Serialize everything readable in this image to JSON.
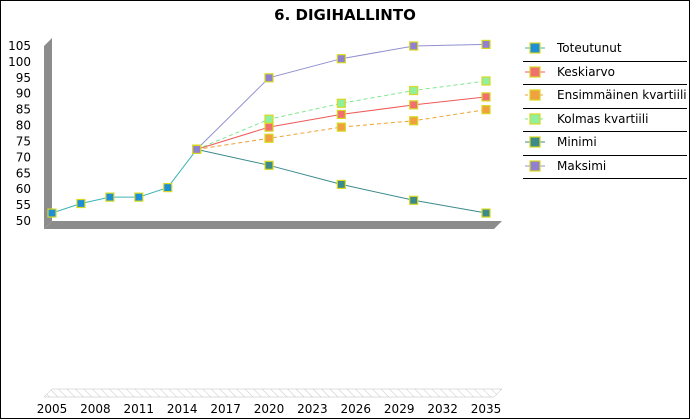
{
  "chart_data": {
    "type": "line",
    "title": "6. DIGIHALLINTO",
    "xlabel": "",
    "ylabel": "",
    "x_ticks": [
      "2005",
      "2008",
      "2011",
      "2014",
      "2017",
      "2020",
      "2023",
      "2026",
      "2029",
      "2032",
      "2035"
    ],
    "y_ticks": [
      "50",
      "55",
      "60",
      "65",
      "70",
      "75",
      "80",
      "85",
      "90",
      "95",
      "100",
      "105"
    ],
    "ylim": [
      50,
      105
    ],
    "xlim": [
      2005,
      2035
    ],
    "legend_position": "right",
    "series": [
      {
        "name": "Toteutunut",
        "color": "#3cb4b4",
        "marker": "#1e8fd6",
        "dash": false,
        "points": [
          [
            2005,
            52.5
          ],
          [
            2007,
            55.5
          ],
          [
            2009,
            57.5
          ],
          [
            2011,
            57.5
          ],
          [
            2013,
            60.5
          ],
          [
            2015,
            72.5
          ]
        ]
      },
      {
        "name": "Keskiarvo",
        "color": "#ee5a5a",
        "marker": "#f07070",
        "dash": false,
        "points": [
          [
            2015,
            72.5
          ],
          [
            2020,
            79.5
          ],
          [
            2025,
            83.5
          ],
          [
            2030,
            86.5
          ],
          [
            2035,
            89
          ]
        ]
      },
      {
        "name": "Ensimmäinen kvartiili",
        "color": "#f0a030",
        "marker": "#f0a040",
        "dash": true,
        "points": [
          [
            2015,
            72.5
          ],
          [
            2020,
            76
          ],
          [
            2025,
            79.5
          ],
          [
            2030,
            81.5
          ],
          [
            2035,
            85
          ]
        ]
      },
      {
        "name": "Kolmas kvartiili",
        "color": "#80e890",
        "marker": "#90f0a0",
        "dash": true,
        "points": [
          [
            2015,
            72.5
          ],
          [
            2020,
            82
          ],
          [
            2025,
            87
          ],
          [
            2030,
            91
          ],
          [
            2035,
            94
          ]
        ]
      },
      {
        "name": "Minimi",
        "color": "#3c8a8a",
        "marker": "#3c8a8a",
        "dash": false,
        "points": [
          [
            2015,
            72.5
          ],
          [
            2020,
            67.5
          ],
          [
            2025,
            61.5
          ],
          [
            2030,
            56.5
          ],
          [
            2035,
            52.5
          ]
        ]
      },
      {
        "name": "Maksimi",
        "color": "#9090d0",
        "marker": "#9080d0",
        "dash": false,
        "points": [
          [
            2015,
            72.5
          ],
          [
            2020,
            95
          ],
          [
            2025,
            101
          ],
          [
            2030,
            105
          ],
          [
            2035,
            105.5
          ]
        ]
      }
    ]
  }
}
